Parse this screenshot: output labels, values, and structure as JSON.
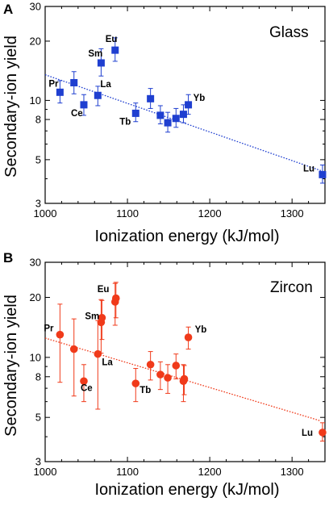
{
  "chart_data": [
    {
      "type": "scatter",
      "panel": "A",
      "title": "Glass",
      "xlabel": "Ionization energy (kJ/mol)",
      "ylabel": "Secondary-ion yield",
      "xlim": [
        1000,
        1340
      ],
      "ylim": [
        3,
        30
      ],
      "yscale": "log",
      "xticks": [
        1000,
        1100,
        1200,
        1300
      ],
      "yticks": [
        3,
        5,
        8,
        10,
        20,
        30
      ],
      "grid": false,
      "marker": "square",
      "color": "#1f3fd0",
      "points": [
        {
          "x": 1018,
          "y": 11.0,
          "err_lo": 1.3,
          "err_hi": 1.6,
          "label": "Pr"
        },
        {
          "x": 1035,
          "y": 12.3,
          "err_lo": 1.5,
          "err_hi": 1.7,
          "label": ""
        },
        {
          "x": 1047,
          "y": 9.5,
          "err_lo": 1.1,
          "err_hi": 1.2,
          "label": "Ce"
        },
        {
          "x": 1064,
          "y": 10.6,
          "err_lo": 1.2,
          "err_hi": 1.2,
          "label": "La"
        },
        {
          "x": 1068,
          "y": 15.5,
          "err_lo": 2.2,
          "err_hi": 2.8,
          "label": "Sm"
        },
        {
          "x": 1085,
          "y": 18.0,
          "err_lo": 2.2,
          "err_hi": 2.8,
          "label": "Eu"
        },
        {
          "x": 1110,
          "y": 8.6,
          "err_lo": 0.8,
          "err_hi": 1.1,
          "label": "Tb"
        },
        {
          "x": 1128,
          "y": 10.2,
          "err_lo": 1.1,
          "err_hi": 1.3,
          "label": ""
        },
        {
          "x": 1140,
          "y": 8.4,
          "err_lo": 0.8,
          "err_hi": 1.0,
          "label": ""
        },
        {
          "x": 1149,
          "y": 7.7,
          "err_lo": 0.8,
          "err_hi": 1.0,
          "label": ""
        },
        {
          "x": 1159,
          "y": 8.1,
          "err_lo": 0.8,
          "err_hi": 1.0,
          "label": ""
        },
        {
          "x": 1168,
          "y": 8.5,
          "err_lo": 0.8,
          "err_hi": 1.0,
          "label": ""
        },
        {
          "x": 1174,
          "y": 9.5,
          "err_lo": 1.0,
          "err_hi": 1.2,
          "label": "Yb"
        },
        {
          "x": 1337,
          "y": 4.2,
          "err_lo": 0.4,
          "err_hi": 0.5,
          "label": "Lu"
        }
      ],
      "fit": {
        "x": [
          1000,
          1335
        ],
        "y": [
          13.5,
          4.4
        ]
      }
    },
    {
      "type": "scatter",
      "panel": "B",
      "title": "Zircon",
      "xlabel": "Ionization energy (kJ/mol)",
      "ylabel": "Secondary-ion yield",
      "xlim": [
        1000,
        1340
      ],
      "ylim": [
        3,
        30
      ],
      "yscale": "log",
      "xticks": [
        1000,
        1100,
        1200,
        1300
      ],
      "yticks": [
        3,
        5,
        8,
        10,
        20,
        30
      ],
      "grid": false,
      "marker": "circle",
      "color": "#f03a1a",
      "points": [
        {
          "x": 1018,
          "y": 13.0,
          "err_lo": 5.5,
          "err_hi": 5.5,
          "label": "Pr"
        },
        {
          "x": 1035,
          "y": 11.0,
          "err_lo": 4.6,
          "err_hi": 4.6,
          "label": ""
        },
        {
          "x": 1047,
          "y": 7.6,
          "err_lo": 1.6,
          "err_hi": 1.6,
          "label": "Ce"
        },
        {
          "x": 1064,
          "y": 10.4,
          "err_lo": 4.9,
          "err_hi": 4.9,
          "label": "La"
        },
        {
          "x": 1068,
          "y": 15.0,
          "err_lo": 4.5,
          "err_hi": 4.5,
          "label": "Sm"
        },
        {
          "x": 1069,
          "y": 15.8,
          "err_lo": 3.5,
          "err_hi": 3.5,
          "label": ""
        },
        {
          "x": 1085,
          "y": 19.0,
          "err_lo": 4.5,
          "err_hi": 4.5,
          "label": "Eu"
        },
        {
          "x": 1086,
          "y": 19.8,
          "err_lo": 4.0,
          "err_hi": 4.0,
          "label": ""
        },
        {
          "x": 1110,
          "y": 7.4,
          "err_lo": 1.4,
          "err_hi": 1.4,
          "label": "Tb"
        },
        {
          "x": 1128,
          "y": 9.2,
          "err_lo": 1.5,
          "err_hi": 1.5,
          "label": ""
        },
        {
          "x": 1140,
          "y": 8.2,
          "err_lo": 1.3,
          "err_hi": 1.3,
          "label": ""
        },
        {
          "x": 1149,
          "y": 7.9,
          "err_lo": 1.3,
          "err_hi": 1.3,
          "label": ""
        },
        {
          "x": 1159,
          "y": 9.1,
          "err_lo": 1.3,
          "err_hi": 1.3,
          "label": ""
        },
        {
          "x": 1168,
          "y": 7.6,
          "err_lo": 1.6,
          "err_hi": 1.6,
          "label": ""
        },
        {
          "x": 1169,
          "y": 7.8,
          "err_lo": 1.3,
          "err_hi": 1.3,
          "label": ""
        },
        {
          "x": 1174,
          "y": 12.6,
          "err_lo": 1.6,
          "err_hi": 1.6,
          "label": "Yb"
        },
        {
          "x": 1337,
          "y": 4.2,
          "err_lo": 0.4,
          "err_hi": 0.5,
          "label": "Lu"
        }
      ],
      "fit": {
        "x": [
          1000,
          1335
        ],
        "y": [
          12.5,
          4.8
        ]
      }
    }
  ]
}
